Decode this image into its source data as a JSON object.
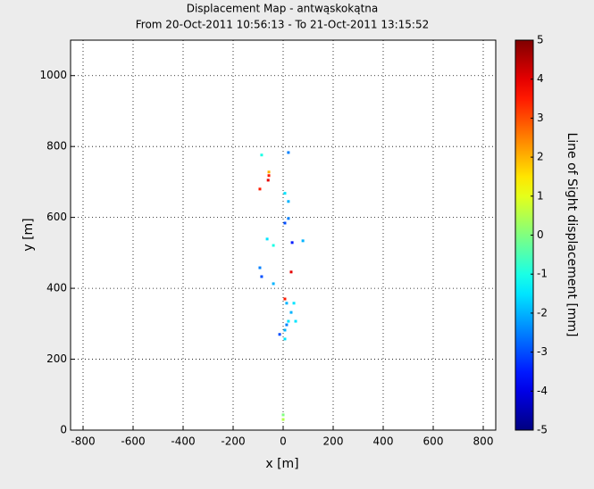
{
  "chart_data": {
    "type": "scatter",
    "title": "Displacement Map - antwąskokątna",
    "subtitle": "From 20-Oct-2011 10:56:13 - To 21-Oct-2011 13:15:52",
    "xlabel": "x [m]",
    "ylabel": "y [m]",
    "colorbar_label": "Line of Sight displacement [mm]",
    "colormap": "jet",
    "grid": true,
    "x": [
      -57,
      -60,
      -93,
      -57,
      -86,
      21,
      7,
      21,
      7,
      21,
      36,
      -64,
      -39,
      79,
      -93,
      -86,
      32,
      -39,
      7,
      43,
      32,
      21,
      7,
      -14,
      7,
      14,
      0,
      0,
      14,
      50
    ],
    "y": [
      718,
      705,
      680,
      728,
      776,
      783,
      668,
      645,
      584,
      597,
      529,
      539,
      521,
      534,
      458,
      433,
      446,
      413,
      370,
      358,
      332,
      307,
      282,
      270,
      257,
      297,
      43,
      30,
      358,
      307
    ],
    "c": [
      3.5,
      4,
      3.5,
      2,
      -1,
      -2.5,
      -1.5,
      -2,
      -3,
      -2.5,
      -3.5,
      -1.5,
      -1,
      -2,
      -2.5,
      -3,
      4,
      -2,
      3.5,
      -1.5,
      -2,
      -1.5,
      -2,
      -3,
      -1.5,
      -2.5,
      0,
      0.5,
      -2,
      -1.5
    ],
    "xlim": [
      -850,
      850
    ],
    "ylim": [
      0,
      1100
    ],
    "clim": [
      -5,
      5
    ],
    "xticks": [
      -800,
      -600,
      -400,
      -200,
      0,
      200,
      400,
      600,
      800
    ],
    "yticks": [
      0,
      200,
      400,
      600,
      800,
      1000
    ],
    "cticks": [
      -5,
      -4,
      -3,
      -2,
      -1,
      0,
      1,
      2,
      3,
      4,
      5
    ]
  }
}
